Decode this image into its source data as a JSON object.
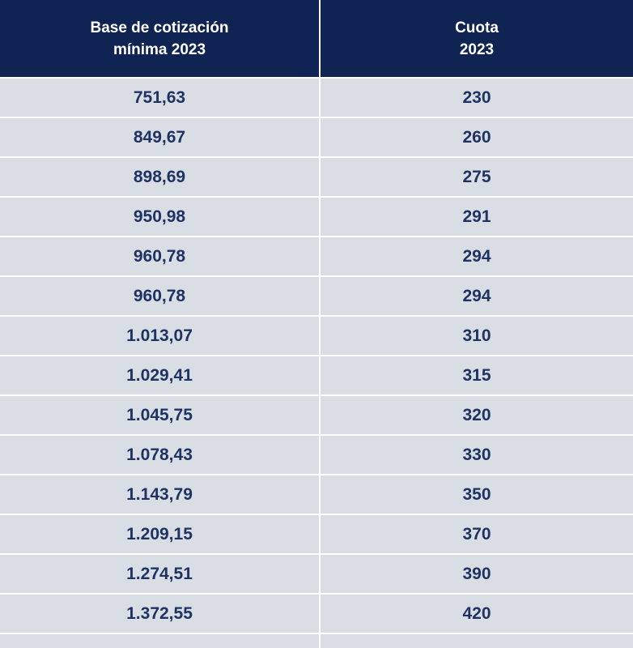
{
  "headers": {
    "col1": "Base de cotización\nmínima 2023",
    "col2": "Cuota\n2023"
  },
  "rows": [
    {
      "base": "751,63",
      "cuota": "230"
    },
    {
      "base": "849,67",
      "cuota": "260"
    },
    {
      "base": "898,69",
      "cuota": "275"
    },
    {
      "base": "950,98",
      "cuota": "291"
    },
    {
      "base": "960,78",
      "cuota": "294"
    },
    {
      "base": "960,78",
      "cuota": "294"
    },
    {
      "base": "1.013,07",
      "cuota": "310"
    },
    {
      "base": "1.029,41",
      "cuota": "315"
    },
    {
      "base": "1.045,75",
      "cuota": "320"
    },
    {
      "base": "1.078,43",
      "cuota": "330"
    },
    {
      "base": "1.143,79",
      "cuota": "350"
    },
    {
      "base": "1.209,15",
      "cuota": "370"
    },
    {
      "base": "1.274,51",
      "cuota": "390"
    },
    {
      "base": "1.372,55",
      "cuota": "420"
    },
    {
      "base": "",
      "cuota": ""
    }
  ]
}
